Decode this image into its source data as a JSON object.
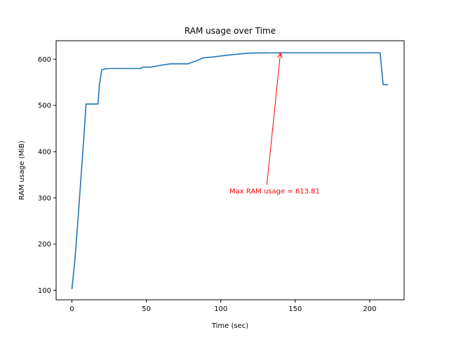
{
  "chart_data": {
    "type": "line",
    "title": "RAM usage over Time",
    "xlabel": "Time (sec)",
    "ylabel": "RAM usage (MiB)",
    "xlim": [
      -10.6,
      223.1
    ],
    "ylim": [
      79.5,
      640
    ],
    "xticks": [
      0,
      50,
      100,
      150,
      200
    ],
    "yticks": [
      100,
      200,
      300,
      400,
      500,
      600
    ],
    "grid": false,
    "series": [
      {
        "color": "#1f77b4",
        "x": [
          0,
          2,
          4,
          6,
          8,
          9.5,
          12,
          15,
          17.5,
          18.5,
          20,
          22,
          25,
          30,
          40,
          46,
          48,
          53,
          60,
          66,
          72,
          78,
          84,
          88,
          95,
          105,
          118,
          125,
          140,
          160,
          180,
          200,
          207,
          209,
          212.5
        ],
        "y": [
          103,
          165,
          250,
          340,
          430,
          503,
          503,
          503,
          503,
          545,
          577,
          579,
          580,
          580,
          580,
          580,
          583,
          583,
          587,
          590,
          590,
          590,
          597,
          603,
          605,
          609,
          613,
          613.5,
          613.8,
          613.8,
          613.8,
          613.8,
          613.8,
          545,
          545
        ]
      }
    ],
    "annotation": {
      "text": "Max RAM usage = 613.81",
      "point": [
        140,
        613.81
      ],
      "text_pos": [
        130,
        315
      ],
      "color": "#ff0000"
    }
  }
}
